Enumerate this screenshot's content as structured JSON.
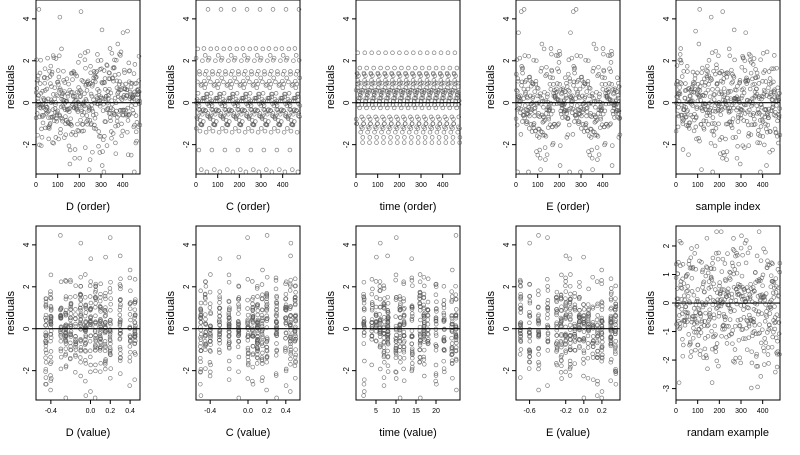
{
  "figure": {
    "n_points": 480,
    "point_color": "#555555",
    "axis_color": "#000000",
    "zero_line_color": "#000000"
  },
  "chart_data": [
    {
      "type": "scatter",
      "xlabel": "D (order)",
      "ylabel": "residuals",
      "xlim": [
        0,
        480
      ],
      "ylim": [
        -3.4,
        4.9
      ],
      "xticks": [
        "0",
        "100",
        "200",
        "300",
        "400"
      ],
      "yticks": [
        "-2",
        "0",
        "2",
        "4"
      ],
      "zero_line": true,
      "x_kind": "order",
      "xtick_values": [
        0,
        100,
        200,
        300,
        400
      ],
      "ytick_values": [
        -2,
        0,
        2,
        4
      ]
    },
    {
      "type": "scatter",
      "xlabel": "C (order)",
      "ylabel": "residuals",
      "xlim": [
        0,
        480
      ],
      "ylim": [
        -3.4,
        4.9
      ],
      "xticks": [
        "0",
        "100",
        "200",
        "300",
        "400"
      ],
      "yticks": [
        "-2",
        "0",
        "2",
        "4"
      ],
      "zero_line": true,
      "x_kind": "order",
      "xtick_values": [
        0,
        100,
        200,
        300,
        400
      ],
      "ytick_values": [
        -2,
        0,
        2,
        4
      ]
    },
    {
      "type": "scatter",
      "xlabel": "time (order)",
      "ylabel": "residuals",
      "xlim": [
        0,
        480
      ],
      "ylim": [
        -3.4,
        4.9
      ],
      "xticks": [
        "0",
        "100",
        "200",
        "300",
        "400"
      ],
      "yticks": [
        "-2",
        "0",
        "2",
        "4"
      ],
      "zero_line": true,
      "x_kind": "order",
      "xtick_values": [
        0,
        100,
        200,
        300,
        400
      ],
      "ytick_values": [
        -2,
        0,
        2,
        4
      ]
    },
    {
      "type": "scatter",
      "xlabel": "E (order)",
      "ylabel": "residuals",
      "xlim": [
        0,
        480
      ],
      "ylim": [
        -3.4,
        4.9
      ],
      "xticks": [
        "0",
        "100",
        "200",
        "300",
        "400"
      ],
      "yticks": [
        "-2",
        "0",
        "2",
        "4"
      ],
      "zero_line": true,
      "x_kind": "order",
      "xtick_values": [
        0,
        100,
        200,
        300,
        400
      ],
      "ytick_values": [
        -2,
        0,
        2,
        4
      ]
    },
    {
      "type": "scatter",
      "xlabel": "sample index",
      "ylabel": "residuals",
      "xlim": [
        0,
        480
      ],
      "ylim": [
        -3.4,
        4.9
      ],
      "xticks": [
        "0",
        "100",
        "200",
        "300",
        "400"
      ],
      "yticks": [
        "-2",
        "0",
        "2",
        "4"
      ],
      "zero_line": true,
      "x_kind": "order",
      "xtick_values": [
        0,
        100,
        200,
        300,
        400
      ],
      "ytick_values": [
        -2,
        0,
        2,
        4
      ]
    },
    {
      "type": "scatter",
      "xlabel": "D (value)",
      "ylabel": "residuals",
      "xlim": [
        -0.55,
        0.5
      ],
      "ylim": [
        -3.4,
        4.9
      ],
      "xticks": [
        "-0.4",
        "0.0",
        "0.2",
        "0.4"
      ],
      "yticks": [
        "-2",
        "0",
        "2",
        "4"
      ],
      "zero_line": true,
      "x_kind": "value",
      "x_levels": [
        -0.45,
        -0.4,
        -0.3,
        -0.25,
        -0.2,
        -0.15,
        -0.1,
        -0.05,
        0.0,
        0.05,
        0.1,
        0.15,
        0.2,
        0.3,
        0.4,
        0.45
      ],
      "xtick_values": [
        -0.4,
        0.0,
        0.2,
        0.4
      ],
      "ytick_values": [
        -2,
        0,
        2,
        4
      ]
    },
    {
      "type": "scatter",
      "xlabel": "C (value)",
      "ylabel": "residuals",
      "xlim": [
        -0.55,
        0.55
      ],
      "ylim": [
        -3.4,
        4.9
      ],
      "xticks": [
        "-0.4",
        "0.0",
        "0.2",
        "0.4"
      ],
      "yticks": [
        "-2",
        "0",
        "2",
        "4"
      ],
      "zero_line": true,
      "x_kind": "value",
      "x_levels": [
        -0.5,
        -0.45,
        -0.4,
        -0.3,
        -0.2,
        -0.1,
        0.0,
        0.05,
        0.1,
        0.15,
        0.2,
        0.3,
        0.4,
        0.45,
        0.5
      ],
      "xtick_values": [
        -0.4,
        0.0,
        0.2,
        0.4
      ],
      "ytick_values": [
        -2,
        0,
        2,
        4
      ]
    },
    {
      "type": "scatter",
      "xlabel": "time (value)",
      "ylabel": "residuals",
      "xlim": [
        0,
        26
      ],
      "ylim": [
        -3.4,
        4.9
      ],
      "xticks": [
        "5",
        "10",
        "15",
        "20"
      ],
      "yticks": [
        "-2",
        "0",
        "2",
        "4"
      ],
      "zero_line": true,
      "x_kind": "value",
      "x_levels": [
        2,
        4,
        5,
        6,
        7,
        8,
        10,
        11,
        12,
        14,
        16,
        17,
        18,
        20,
        22,
        24,
        25
      ],
      "xtick_values": [
        5,
        10,
        15,
        20
      ],
      "ytick_values": [
        -2,
        0,
        2,
        4
      ]
    },
    {
      "type": "scatter",
      "xlabel": "E (value)",
      "ylabel": "residuals",
      "xlim": [
        -0.75,
        0.4
      ],
      "ylim": [
        -3.4,
        4.9
      ],
      "xticks": [
        "-0.6",
        "-0.2",
        "0.0",
        "0.2"
      ],
      "yticks": [
        "-2",
        "0",
        "2",
        "4"
      ],
      "zero_line": true,
      "x_kind": "value",
      "x_levels": [
        -0.7,
        -0.6,
        -0.5,
        -0.4,
        -0.3,
        -0.25,
        -0.2,
        -0.15,
        -0.1,
        -0.05,
        0.0,
        0.05,
        0.1,
        0.15,
        0.2,
        0.3,
        0.35
      ],
      "xtick_values": [
        -0.6,
        -0.2,
        0.0,
        0.2
      ],
      "ytick_values": [
        -2,
        0,
        2,
        4
      ]
    },
    {
      "type": "scatter",
      "xlabel": "randam example",
      "ylabel": "residuals",
      "xlim": [
        0,
        480
      ],
      "ylim": [
        -3.4,
        2.7
      ],
      "xticks": [
        "0",
        "100",
        "200",
        "300",
        "400"
      ],
      "yticks": [
        "-3",
        "-2",
        "-1",
        "0",
        "1",
        "2"
      ],
      "zero_line": true,
      "x_kind": "order",
      "xtick_values": [
        0,
        100,
        200,
        300,
        400
      ],
      "ytick_values": [
        -3,
        -2,
        -1,
        0,
        1,
        2
      ]
    }
  ]
}
